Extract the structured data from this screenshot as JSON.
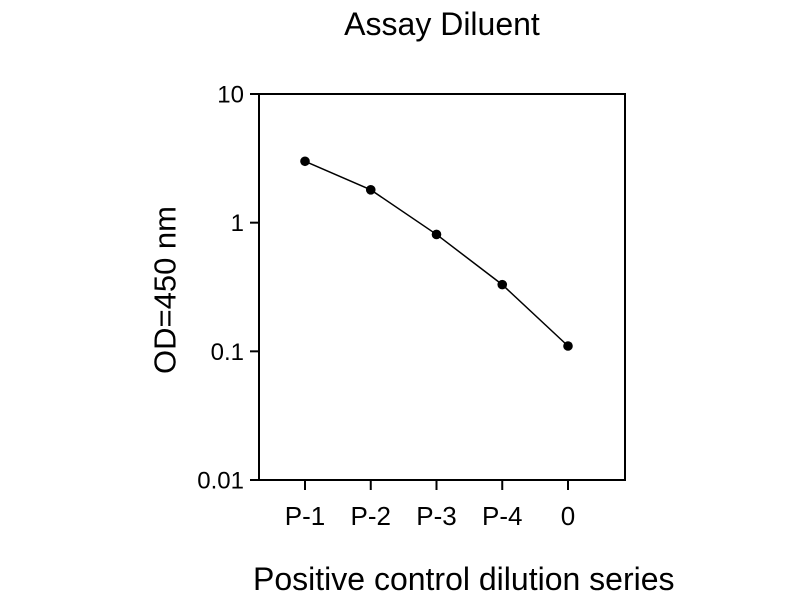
{
  "figure": {
    "background_color": "#ffffff",
    "foreground_color": "#000000"
  },
  "chart_data": {
    "type": "line",
    "title": "Assay Diluent",
    "xlabel": "Positive control dilution series",
    "ylabel": "OD=450 nm",
    "categories": [
      "P-1",
      "P-2",
      "P-3",
      "P-4",
      "0"
    ],
    "values": [
      3.0,
      1.8,
      0.81,
      0.33,
      0.11
    ],
    "yscale": "log",
    "ylim": [
      0.01,
      10
    ],
    "yticks": [
      {
        "label": "10",
        "value": 10
      },
      {
        "label": "1",
        "value": 1
      },
      {
        "label": "0.1",
        "value": 0.1
      },
      {
        "label": "0.01",
        "value": 0.01
      }
    ],
    "grid": false,
    "legend": false,
    "marker": {
      "shape": "circle",
      "color": "#000000"
    },
    "line_color": "#000000"
  }
}
